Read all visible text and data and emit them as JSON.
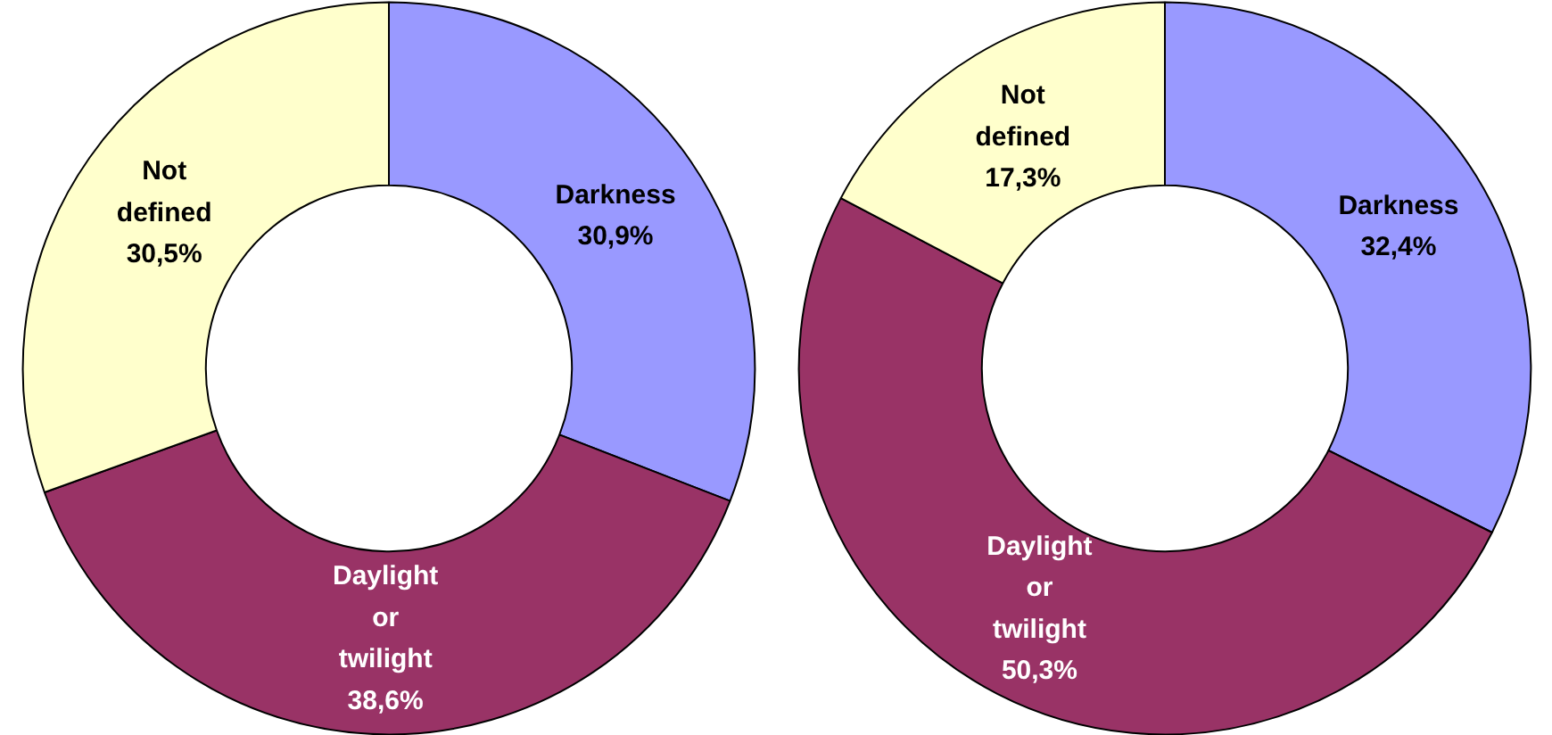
{
  "chart_data": [
    {
      "type": "donut",
      "categories": [
        "Darkness",
        "Daylight or twilight",
        "Not defined"
      ],
      "values": [
        30.9,
        38.6,
        30.5
      ],
      "colors": [
        "#9999ff",
        "#993366",
        "#ffffcc"
      ],
      "value_labels": [
        "30,9%",
        "38,6%",
        "30,5%"
      ],
      "legend": false
    },
    {
      "type": "donut",
      "categories": [
        "Darkness",
        "Daylight or twilight",
        "Not defined"
      ],
      "values": [
        32.4,
        50.3,
        17.3
      ],
      "colors": [
        "#9999ff",
        "#993366",
        "#ffffcc"
      ],
      "value_labels": [
        "32,4%",
        "50,3%",
        "17,3%"
      ],
      "legend": false
    }
  ]
}
